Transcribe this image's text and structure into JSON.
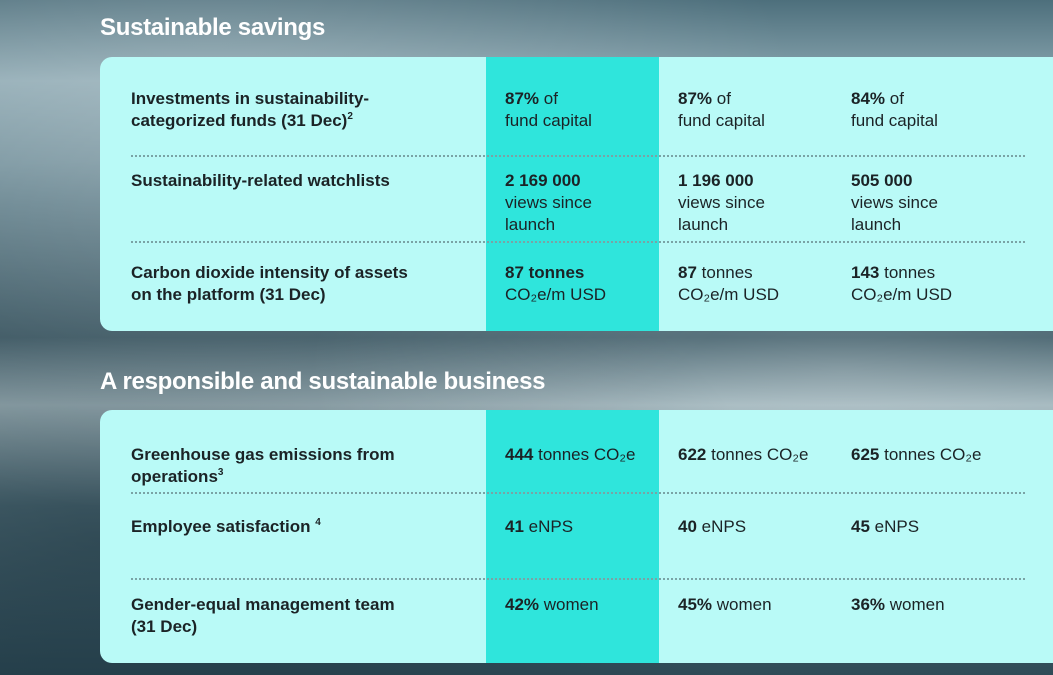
{
  "sections": [
    {
      "title": "Sustainable savings",
      "rows": [
        {
          "label": "Investments in sustainability-\ncategorized funds (31 Dec)",
          "sup": "2",
          "values": [
            {
              "bold": "87%",
              "rest": " of\nfund capital"
            },
            {
              "bold": "87%",
              "rest": " of\nfund capital"
            },
            {
              "bold": "84%",
              "rest": " of\nfund capital"
            }
          ]
        },
        {
          "label": "Sustainability-related watchlists",
          "sup": "",
          "values": [
            {
              "bold": "2 169 000",
              "rest": "\nviews since\nlaunch"
            },
            {
              "bold": "1 196 000",
              "rest": "\nviews since\nlaunch"
            },
            {
              "bold": "505 000",
              "rest": "\nviews since\nlaunch"
            }
          ]
        },
        {
          "label": "Carbon dioxide intensity of assets\non the platform (31 Dec)",
          "sup": "",
          "values": [
            {
              "bold": "87 tonnes",
              "rest": "\nCO₂e/m USD"
            },
            {
              "bold": "87",
              "rest": " tonnes\nCO₂e/m USD"
            },
            {
              "bold": "143",
              "rest": " tonnes\nCO₂e/m USD"
            }
          ]
        }
      ]
    },
    {
      "title": "A responsible and sustainable business",
      "rows": [
        {
          "label": "Greenhouse gas emissions from\noperations",
          "sup": "3",
          "values": [
            {
              "bold": "444",
              "rest": " tonnes CO₂e"
            },
            {
              "bold": "622",
              "rest": " tonnes CO₂e"
            },
            {
              "bold": "625",
              "rest": " tonnes CO₂e"
            }
          ]
        },
        {
          "label": "Employee satisfaction ",
          "sup": "4",
          "values": [
            {
              "bold": "41",
              "rest": " eNPS"
            },
            {
              "bold": "40",
              "rest": " eNPS"
            },
            {
              "bold": "45",
              "rest": " eNPS"
            }
          ]
        },
        {
          "label": "Gender-equal management team\n(31 Dec)",
          "sup": "",
          "values": [
            {
              "bold": "42%",
              "rest": " women"
            },
            {
              "bold": "45%",
              "rest": " women"
            },
            {
              "bold": "36%",
              "rest": " women"
            }
          ]
        }
      ]
    }
  ],
  "colors": {
    "panel": "#b9faf7",
    "highlight": "#2fe5dc"
  }
}
